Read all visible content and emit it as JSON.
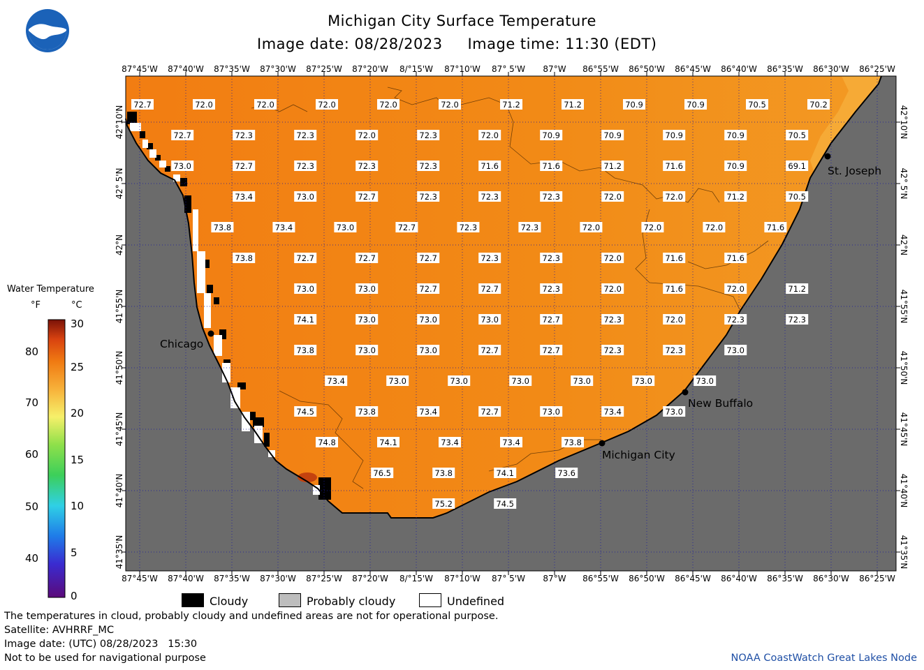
{
  "header": {
    "title": "Michigan City Surface Temperature",
    "image_date_label": "Image date: 08/28/2023",
    "image_time_label": "Image time: 11:30 (EDT)",
    "logo_text": "NOAA"
  },
  "map": {
    "lon_labels": [
      "87°45'W",
      "87°40'W",
      "87°35'W",
      "87°30'W",
      "87°25'W",
      "87°20'W",
      "8/°15'W",
      "87°10'W",
      "87° 5'W",
      "87°W",
      "86°55'W",
      "86°50'W",
      "86°45'W",
      "86°40'W",
      "86°35'W",
      "86°30'W",
      "86°25'W"
    ],
    "lat_labels": [
      "42°10'N",
      "42° 5'N",
      "42°N",
      "41°55'N",
      "41°50'N",
      "41°45'N",
      "41°40'N",
      "41°35'N"
    ],
    "cities": [
      {
        "name": "Chicago",
        "side": "left"
      },
      {
        "name": "St. Joseph",
        "side": "right"
      },
      {
        "name": "New Buffalo",
        "side": "right"
      },
      {
        "name": "Michigan City",
        "side": "right"
      }
    ],
    "temperature_labels": [
      [
        "72.7",
        "72.0",
        "72.0",
        "72.0",
        "72.0",
        "72.0",
        "71.2",
        "71.2",
        "70.9",
        "70.9",
        "70.5",
        "70.2"
      ],
      [
        "72.7",
        "72.3",
        "72.3",
        "72.0",
        "72.3",
        "72.0",
        "70.9",
        "70.9",
        "70.9",
        "70.9",
        "70.5"
      ],
      [
        "73.0",
        "72.7",
        "72.3",
        "72.3",
        "72.3",
        "71.6",
        "71.6",
        "71.2",
        "71.6",
        "70.9",
        "69.1"
      ],
      [
        "73.4",
        "73.0",
        "72.7",
        "72.3",
        "72.3",
        "72.3",
        "72.0",
        "72.0",
        "71.2",
        "70.5"
      ],
      [
        "73.8",
        "73.4",
        "73.0",
        "72.7",
        "72.3",
        "72.3",
        "72.0",
        "72.0",
        "72.0",
        "71.6"
      ],
      [
        "73.8",
        "72.7",
        "72.7",
        "72.7",
        "72.3",
        "72.3",
        "72.0",
        "71.6",
        "71.6"
      ],
      [
        "73.0",
        "73.0",
        "72.7",
        "72.7",
        "72.3",
        "72.0",
        "71.6",
        "72.0",
        "71.2"
      ],
      [
        "74.1",
        "73.0",
        "73.0",
        "73.0",
        "72.7",
        "72.3",
        "72.0",
        "72.3",
        "72.3"
      ],
      [
        "73.8",
        "73.0",
        "73.0",
        "72.7",
        "72.7",
        "72.3",
        "72.3",
        "73.0"
      ],
      [
        "73.4",
        "73.0",
        "73.0",
        "73.0",
        "73.0",
        "73.0",
        "73.0"
      ],
      [
        "74.5",
        "73.8",
        "73.4",
        "72.7",
        "73.0",
        "73.4",
        "73.0"
      ],
      [
        "74.8",
        "74.1",
        "73.4",
        "73.4",
        "73.8"
      ],
      [
        "76.5",
        "73.8",
        "74.1",
        "73.6"
      ],
      [
        "75.2",
        "74.5"
      ]
    ],
    "colors": {
      "land": "#6b6b6b",
      "water": "#f08a10",
      "water_light": "#f6ad3a",
      "grid": "#1a1aa0"
    }
  },
  "legend": {
    "title": "Water Temperature",
    "unit_f": "°F",
    "unit_c": "°C",
    "f_ticks": [
      "80",
      "70",
      "60",
      "50",
      "40"
    ],
    "c_ticks": [
      "30",
      "25",
      "20",
      "15",
      "10",
      "5",
      "0"
    ],
    "keys": [
      {
        "label": "Cloudy",
        "color": "#000000"
      },
      {
        "label": "Probably cloudy",
        "color": "#bdbdbd"
      },
      {
        "label": "Undefined",
        "color": "#ffffff"
      }
    ]
  },
  "footer": {
    "note1": "The temperatures in cloud, probably cloudy and undefined areas are not for operational purpose.",
    "note2": "Satellite: AVHRRF_MC",
    "note3": "Image date: (UTC) 08/28/2023   15:30",
    "note4": "Not to be used for navigational purpose",
    "credit": "NOAA CoastWatch Great Lakes Node"
  }
}
